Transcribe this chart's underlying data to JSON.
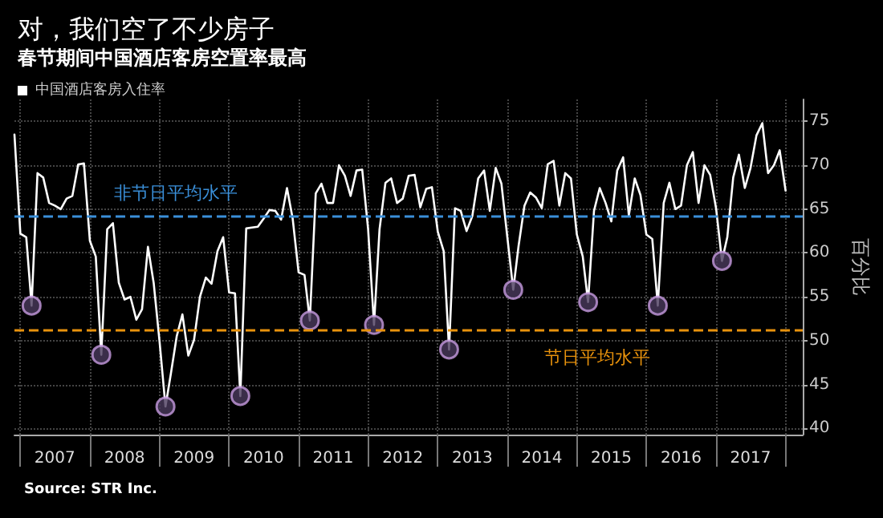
{
  "chart_data": {
    "type": "line",
    "title": "对，我们空了不少房子",
    "subtitle": "春节期间中国酒店客房空置率最高",
    "ylabel": "百分比",
    "annotations": [
      "Source: STR Inc."
    ],
    "legend": "top left",
    "grid": true,
    "marker": "none",
    "line_style": "solid",
    "xlim": [
      "2006-12",
      "2018-04"
    ],
    "ylim": [
      39.3,
      77.5
    ],
    "yticks": [
      40,
      45,
      50,
      55,
      60,
      65,
      70,
      75
    ],
    "xticks": [
      {
        "value": "2007-01",
        "label": null
      },
      {
        "value": "2007-07",
        "label": "2007"
      },
      {
        "value": "2008-01",
        "label": null
      },
      {
        "value": "2008-07",
        "label": "2008"
      },
      {
        "value": "2009-01",
        "label": null
      },
      {
        "value": "2009-07",
        "label": "2009"
      },
      {
        "value": "2010-01",
        "label": null
      },
      {
        "value": "2010-07",
        "label": "2010"
      },
      {
        "value": "2011-01",
        "label": null
      },
      {
        "value": "2011-07",
        "label": "2011"
      },
      {
        "value": "2012-01",
        "label": null
      },
      {
        "value": "2012-07",
        "label": "2012"
      },
      {
        "value": "2013-01",
        "label": null
      },
      {
        "value": "2013-07",
        "label": "2013"
      },
      {
        "value": "2014-01",
        "label": null
      },
      {
        "value": "2014-07",
        "label": "2014"
      },
      {
        "value": "2015-01",
        "label": null
      },
      {
        "value": "2015-07",
        "label": "2015"
      },
      {
        "value": "2016-01",
        "label": null
      },
      {
        "value": "2016-07",
        "label": "2016"
      },
      {
        "value": "2017-01",
        "label": null
      },
      {
        "value": "2017-07",
        "label": "2017"
      },
      {
        "value": "2018-01",
        "label": null
      }
    ],
    "ref_lines": [
      {
        "axis": "y",
        "value": 64.2,
        "label": "非节日平均水平",
        "color": "#3a8fd9",
        "line_style": "dashed"
      },
      {
        "axis": "y",
        "value": 51.3,
        "label": "节日平均水平",
        "color": "#e8920c",
        "line_style": "dashed"
      }
    ],
    "series": [
      {
        "name": "中国酒店客房入住率",
        "color": "#ffffff",
        "x": [
          "2006-12",
          "2007-01",
          "2007-02",
          "2007-03",
          "2007-04",
          "2007-05",
          "2007-06",
          "2007-07",
          "2007-08",
          "2007-09",
          "2007-10",
          "2007-11",
          "2007-12",
          "2008-01",
          "2008-02",
          "2008-03",
          "2008-04",
          "2008-05",
          "2008-06",
          "2008-07",
          "2008-08",
          "2008-09",
          "2008-10",
          "2008-11",
          "2008-12",
          "2009-01",
          "2009-02",
          "2009-03",
          "2009-04",
          "2009-05",
          "2009-06",
          "2009-07",
          "2009-08",
          "2009-09",
          "2009-10",
          "2009-11",
          "2009-12",
          "2010-01",
          "2010-02",
          "2010-03",
          "2010-04",
          "2010-05",
          "2010-06",
          "2010-07",
          "2010-08",
          "2010-09",
          "2010-10",
          "2010-11",
          "2010-12",
          "2011-01",
          "2011-02",
          "2011-03",
          "2011-04",
          "2011-05",
          "2011-06",
          "2011-07",
          "2011-08",
          "2011-09",
          "2011-10",
          "2011-11",
          "2011-12",
          "2012-01",
          "2012-02",
          "2012-03",
          "2012-04",
          "2012-05",
          "2012-06",
          "2012-07",
          "2012-08",
          "2012-09",
          "2012-10",
          "2012-11",
          "2012-12",
          "2013-01",
          "2013-02",
          "2013-03",
          "2013-04",
          "2013-05",
          "2013-06",
          "2013-07",
          "2013-08",
          "2013-09",
          "2013-10",
          "2013-11",
          "2013-12",
          "2014-01",
          "2014-02",
          "2014-03",
          "2014-04",
          "2014-05",
          "2014-06",
          "2014-07",
          "2014-08",
          "2014-09",
          "2014-10",
          "2014-11",
          "2014-12",
          "2015-01",
          "2015-02",
          "2015-03",
          "2015-04",
          "2015-05",
          "2015-06",
          "2015-07",
          "2015-08",
          "2015-09",
          "2015-10",
          "2015-11",
          "2015-12",
          "2016-01",
          "2016-02",
          "2016-03",
          "2016-04",
          "2016-05",
          "2016-06",
          "2016-07",
          "2016-08",
          "2016-09",
          "2016-10",
          "2016-11",
          "2016-12",
          "2017-01",
          "2017-02",
          "2017-03",
          "2017-04",
          "2017-05",
          "2017-06",
          "2017-07",
          "2017-08",
          "2017-09",
          "2017-10",
          "2017-11",
          "2017-12",
          "2018-01"
        ],
        "values": [
          73.5,
          62.2,
          61.8,
          54.0,
          69.1,
          68.6,
          65.7,
          65.4,
          65.0,
          66.2,
          66.5,
          70.1,
          70.2,
          61.4,
          59.6,
          48.4,
          62.7,
          63.4,
          56.6,
          54.7,
          55.0,
          52.4,
          53.6,
          60.7,
          56.6,
          49.9,
          42.5,
          46.2,
          50.5,
          53.0,
          48.3,
          50.1,
          55.0,
          57.2,
          56.5,
          60.2,
          61.8,
          55.5,
          55.4,
          43.7,
          62.8,
          62.9,
          63.0,
          63.9,
          64.9,
          64.8,
          63.8,
          67.4,
          63.9,
          57.8,
          57.5,
          52.3,
          66.8,
          67.9,
          65.7,
          65.7,
          70.0,
          68.8,
          66.5,
          69.4,
          69.5,
          62.7,
          51.8,
          62.7,
          68.0,
          68.5,
          65.7,
          66.2,
          68.8,
          68.9,
          65.2,
          67.3,
          67.5,
          62.4,
          60.2,
          49.0,
          65.1,
          64.8,
          62.5,
          64.2,
          68.5,
          69.4,
          64.8,
          69.7,
          67.9,
          61.8,
          55.8,
          60.8,
          65.4,
          66.9,
          66.3,
          65.1,
          70.1,
          70.5,
          65.4,
          69.1,
          68.5,
          62.1,
          59.6,
          54.4,
          64.8,
          67.4,
          65.7,
          63.6,
          69.4,
          70.9,
          64.3,
          68.5,
          66.6,
          62.1,
          61.6,
          54.0,
          65.7,
          68.0,
          65.0,
          65.4,
          70.0,
          71.5,
          65.7,
          70.0,
          68.9,
          65.1,
          59.1,
          61.8,
          68.6,
          71.2,
          67.4,
          69.7,
          73.4,
          74.8,
          69.1,
          70.0,
          71.7,
          67.1
        ]
      },
      {
        "type": "scatter",
        "marker": "circle",
        "color": "#c79be0",
        "x": [
          "2007-03",
          "2008-03",
          "2009-02",
          "2010-03",
          "2011-03",
          "2012-02",
          "2013-03",
          "2014-02",
          "2015-03",
          "2016-03",
          "2017-02"
        ],
        "values": [
          54.0,
          48.4,
          42.5,
          43.7,
          52.3,
          51.8,
          49.0,
          55.8,
          54.4,
          54.0,
          59.1
        ]
      }
    ]
  }
}
